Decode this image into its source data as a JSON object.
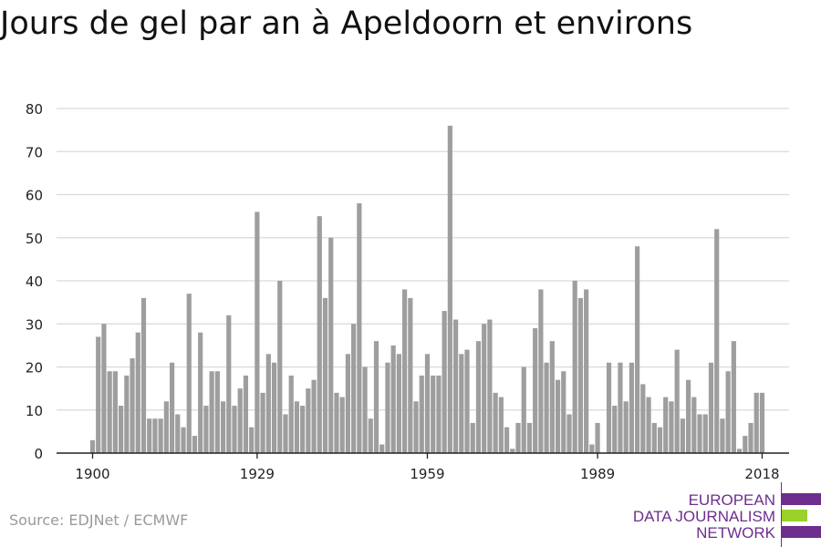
{
  "title": "Jours de gel par an à Apeldoorn et environs",
  "source": "Source: EDJNet / ECMWF",
  "logo": {
    "lines": [
      "EUROPEAN",
      "DATA JOURNALISM",
      "NETWORK"
    ],
    "colors": {
      "purple": "#6e2e8d",
      "green": "#9ad12a"
    }
  },
  "colors": {
    "bar": "#9e9e9e",
    "grid": "#d9d9d9",
    "axis": "#222222",
    "tick_text": "#222222"
  },
  "chart_data": {
    "type": "bar",
    "title": "Jours de gel par an à Apeldoorn et environs",
    "xlabel": "",
    "ylabel": "",
    "ylim": [
      0,
      80
    ],
    "yticks": [
      0,
      10,
      20,
      30,
      40,
      50,
      60,
      70,
      80
    ],
    "xticks": [
      1900,
      1929,
      1959,
      1989,
      2018
    ],
    "grid": true,
    "start_year": 1900,
    "x": [
      1900,
      1901,
      1902,
      1903,
      1904,
      1905,
      1906,
      1907,
      1908,
      1909,
      1910,
      1911,
      1912,
      1913,
      1914,
      1915,
      1916,
      1917,
      1918,
      1919,
      1920,
      1921,
      1922,
      1923,
      1924,
      1925,
      1926,
      1927,
      1928,
      1929,
      1930,
      1931,
      1932,
      1933,
      1934,
      1935,
      1936,
      1937,
      1938,
      1939,
      1940,
      1941,
      1942,
      1943,
      1944,
      1945,
      1946,
      1947,
      1948,
      1949,
      1950,
      1951,
      1952,
      1953,
      1954,
      1955,
      1956,
      1957,
      1958,
      1959,
      1960,
      1961,
      1962,
      1963,
      1964,
      1965,
      1966,
      1967,
      1968,
      1969,
      1970,
      1971,
      1972,
      1973,
      1974,
      1975,
      1976,
      1977,
      1978,
      1979,
      1980,
      1981,
      1982,
      1983,
      1984,
      1985,
      1986,
      1987,
      1988,
      1989,
      1990,
      1991,
      1992,
      1993,
      1994,
      1995,
      1996,
      1997,
      1998,
      1999,
      2000,
      2001,
      2002,
      2003,
      2004,
      2005,
      2006,
      2007,
      2008,
      2009,
      2010,
      2011,
      2012,
      2013,
      2014,
      2015,
      2016,
      2017,
      2018
    ],
    "values": [
      3,
      27,
      30,
      19,
      19,
      11,
      18,
      22,
      28,
      36,
      8,
      8,
      8,
      12,
      21,
      9,
      6,
      37,
      4,
      28,
      11,
      19,
      19,
      12,
      32,
      11,
      15,
      18,
      6,
      56,
      14,
      23,
      21,
      40,
      9,
      18,
      12,
      11,
      15,
      17,
      55,
      36,
      50,
      14,
      13,
      23,
      30,
      58,
      20,
      8,
      26,
      2,
      21,
      25,
      23,
      38,
      36,
      12,
      18,
      23,
      18,
      18,
      33,
      76,
      31,
      23,
      24,
      7,
      26,
      30,
      31,
      14,
      13,
      6,
      1,
      7,
      20,
      7,
      29,
      38,
      21,
      26,
      17,
      19,
      9,
      40,
      36,
      38,
      2,
      7,
      0,
      21,
      11,
      21,
      12,
      21,
      48,
      16,
      13,
      7,
      6,
      13,
      12,
      24,
      8,
      17,
      13,
      9,
      9,
      21,
      52,
      8,
      19,
      26,
      1,
      4,
      7,
      14,
      14
    ]
  }
}
